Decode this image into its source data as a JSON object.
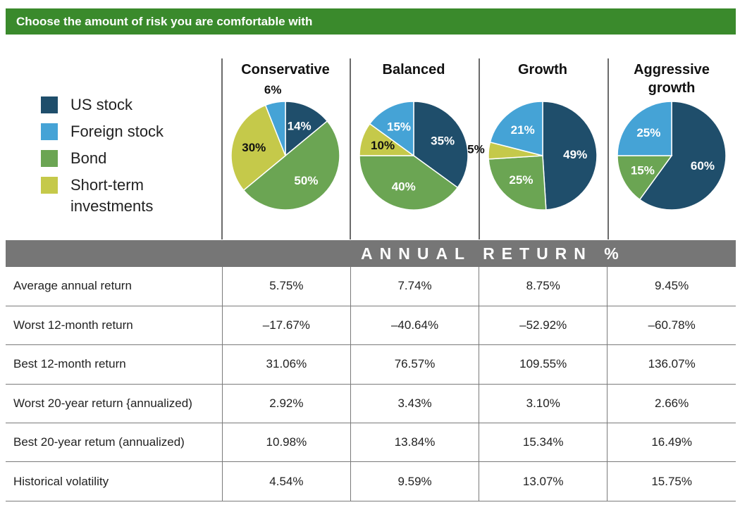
{
  "header": {
    "title": "Choose the amount of risk you are comfortable with"
  },
  "colors": {
    "header_green": "#3a8a2c",
    "us_stock": "#1f4e6b",
    "foreign_stock": "#45a3d6",
    "bond": "#6ba553",
    "short_term": "#c5c94a",
    "band_gray": "#767676"
  },
  "legend": [
    {
      "label": "US stock",
      "color": "#1f4e6b"
    },
    {
      "label": "Foreign stock",
      "color": "#45a3d6"
    },
    {
      "label": "Bond",
      "color": "#6ba553"
    },
    {
      "label": "Short-term investments",
      "label_line1": "Short-term",
      "label_line2": "investments",
      "color": "#c5c94a"
    }
  ],
  "chart_data": [
    {
      "type": "pie",
      "title": "Conservative",
      "categories": [
        "US stock",
        "Bond",
        "Short-term investments",
        "Foreign stock"
      ],
      "values": [
        14,
        50,
        30,
        6
      ],
      "labels": [
        "14%",
        "50%",
        "30%",
        "6%"
      ]
    },
    {
      "type": "pie",
      "title": "Balanced",
      "categories": [
        "US stock",
        "Bond",
        "Short-term investments",
        "Foreign stock"
      ],
      "values": [
        35,
        40,
        10,
        15
      ],
      "labels": [
        "35%",
        "40%",
        "10%",
        "15%"
      ]
    },
    {
      "type": "pie",
      "title": "Growth",
      "categories": [
        "US stock",
        "Bond",
        "Short-term investments",
        "Foreign stock"
      ],
      "values": [
        49,
        25,
        5,
        21
      ],
      "labels": [
        "49%",
        "25%",
        "5%",
        "21%"
      ]
    },
    {
      "type": "pie",
      "title": "Aggressive growth",
      "title_line1": "Aggressive",
      "title_line2": "growth",
      "categories": [
        "US stock",
        "Bond",
        "Foreign stock"
      ],
      "values": [
        60,
        15,
        25
      ],
      "labels": [
        "60%",
        "15%",
        "25%"
      ]
    }
  ],
  "table": {
    "section_title": "ANNUAL RETURN %",
    "rows": [
      {
        "label": "Average annual return",
        "values": [
          "5.75%",
          "7.74%",
          "8.75%",
          "9.45%"
        ]
      },
      {
        "label": "Worst 12-month return",
        "values": [
          "–17.67%",
          "–40.64%",
          "–52.92%",
          "–60.78%"
        ]
      },
      {
        "label": "Best 12-month return",
        "values": [
          "31.06%",
          "76.57%",
          "109.55%",
          "136.07%"
        ]
      },
      {
        "label": "Worst 20-year return {annualized)",
        "values": [
          "2.92%",
          "3.43%",
          "3.10%",
          "2.66%"
        ]
      },
      {
        "label": "Best 20-year retum (annualized)",
        "values": [
          "10.98%",
          "13.84%",
          "15.34%",
          "16.49%"
        ]
      },
      {
        "label": "Historical volatility",
        "values": [
          "4.54%",
          "9.59%",
          "13.07%",
          "15.75%"
        ]
      }
    ]
  }
}
